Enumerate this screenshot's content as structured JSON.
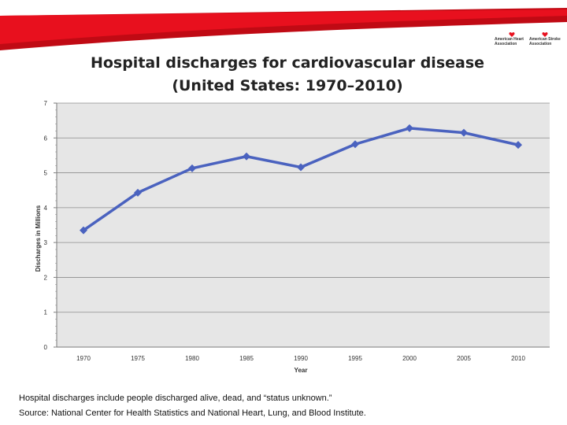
{
  "brand": {
    "aha_name": "American Heart Association",
    "asa_name": "American Stroke Association",
    "red": "#e8101e"
  },
  "slide": {
    "title_line1": "Hospital discharges for cardiovascular disease",
    "title_line2": "(United States: 1970–2010)",
    "note": "Hospital discharges include people discharged alive, dead, and “status unknown.”",
    "source": "Source: National Center for Health Statistics and National Heart, Lung, and Blood Institute."
  },
  "chart_data": {
    "type": "line",
    "title": "Hospital discharges for cardiovascular disease (United States: 1970–2010)",
    "xlabel": "Year",
    "ylabel": "Discharges in Millions",
    "categories": [
      "1970",
      "1975",
      "1980",
      "1985",
      "1990",
      "1995",
      "2000",
      "2005",
      "2010"
    ],
    "series": [
      {
        "name": "Discharges",
        "values": [
          3.35,
          4.43,
          5.13,
          5.47,
          5.16,
          5.82,
          6.28,
          6.15,
          5.8
        ],
        "color": "#4a62bf"
      }
    ],
    "yticks": [
      "0",
      "1",
      "2",
      "3",
      "4",
      "5",
      "6",
      "7"
    ],
    "ylim": [
      0,
      7
    ],
    "grid": true,
    "plot_background": "#e6e6e6"
  }
}
